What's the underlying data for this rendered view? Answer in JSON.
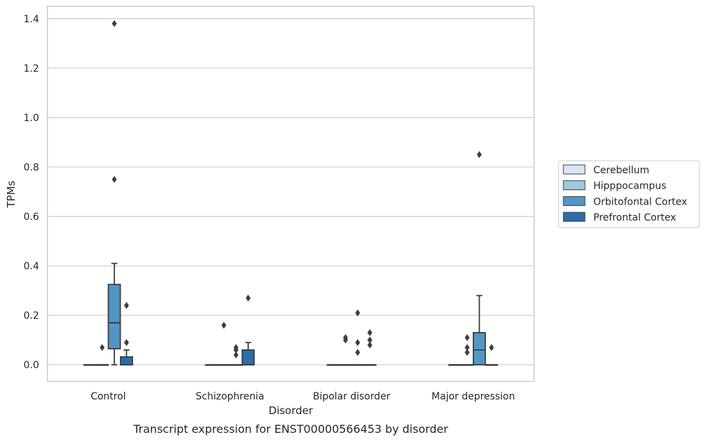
{
  "chart_data": {
    "type": "boxplot",
    "title": "Transcript expression for ENST00000566453 by disorder",
    "xlabel": "Disorder",
    "ylabel": "TPMs",
    "categories": [
      "Control",
      "Schizophrenia",
      "Bipolar disorder",
      "Major depression"
    ],
    "yticks": [
      "0.0",
      "0.2",
      "0.4",
      "0.6",
      "0.8",
      "1.0",
      "1.2",
      "1.4"
    ],
    "ylim": [
      -0.067,
      1.45
    ],
    "grid": true,
    "legend_position": "right",
    "series": [
      {
        "name": "Cerebellum",
        "color": "#d6e6f4",
        "boxes": [
          {
            "q1": 0,
            "median": 0,
            "q3": 0,
            "whisker_low": 0,
            "whisker_high": 0,
            "fliers": []
          },
          {
            "q1": 0,
            "median": 0,
            "q3": 0,
            "whisker_low": 0,
            "whisker_high": 0,
            "fliers": []
          },
          {
            "q1": 0,
            "median": 0,
            "q3": 0,
            "whisker_low": 0,
            "whisker_high": 0,
            "fliers": []
          },
          {
            "q1": 0,
            "median": 0,
            "q3": 0,
            "whisker_low": 0,
            "whisker_high": 0,
            "fliers": []
          }
        ]
      },
      {
        "name": "Hipppocampus",
        "color": "#9fc8e1",
        "boxes": [
          {
            "q1": 0,
            "median": 0,
            "q3": 0,
            "whisker_low": 0,
            "whisker_high": 0,
            "fliers": [
              0.07
            ]
          },
          {
            "q1": 0,
            "median": 0,
            "q3": 0,
            "whisker_low": 0,
            "whisker_high": 0,
            "fliers": [
              0.16
            ]
          },
          {
            "q1": 0,
            "median": 0,
            "q3": 0,
            "whisker_low": 0,
            "whisker_high": 0,
            "fliers": [
              0.11,
              0.1
            ]
          },
          {
            "q1": 0,
            "median": 0,
            "q3": 0,
            "whisker_low": 0,
            "whisker_high": 0,
            "fliers": [
              0.11,
              0.07,
              0.05
            ]
          }
        ]
      },
      {
        "name": "Orbitofontal Cortex",
        "color": "#5096c6",
        "boxes": [
          {
            "q1": 0.065,
            "median": 0.17,
            "q3": 0.325,
            "whisker_low": 0,
            "whisker_high": 0.41,
            "fliers": [
              1.38,
              0.75
            ]
          },
          {
            "q1": 0,
            "median": 0,
            "q3": 0,
            "whisker_low": 0,
            "whisker_high": 0,
            "fliers": [
              0.07,
              0.06,
              0.04
            ]
          },
          {
            "q1": 0,
            "median": 0,
            "q3": 0,
            "whisker_low": 0,
            "whisker_high": 0,
            "fliers": [
              0.09,
              0.21,
              0.05
            ]
          },
          {
            "q1": 0,
            "median": 0.06,
            "q3": 0.13,
            "whisker_low": 0,
            "whisker_high": 0.28,
            "fliers": [
              0.85
            ]
          }
        ]
      },
      {
        "name": "Prefrontal Cortex",
        "color": "#2b6dab",
        "boxes": [
          {
            "q1": 0,
            "median": 0,
            "q3": 0.032,
            "whisker_low": 0,
            "whisker_high": 0.06,
            "fliers": [
              0.24,
              0.09
            ]
          },
          {
            "q1": 0,
            "median": 0,
            "q3": 0.06,
            "whisker_low": 0,
            "whisker_high": 0.09,
            "fliers": [
              0.27
            ]
          },
          {
            "q1": 0,
            "median": 0,
            "q3": 0,
            "whisker_low": 0,
            "whisker_high": 0,
            "fliers": [
              0.13,
              0.1,
              0.08
            ]
          },
          {
            "q1": 0,
            "median": 0,
            "q3": 0,
            "whisker_low": 0,
            "whisker_high": 0,
            "fliers": [
              0.07
            ]
          }
        ]
      }
    ]
  }
}
